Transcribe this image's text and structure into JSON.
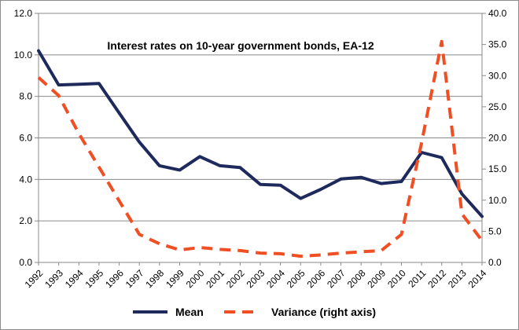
{
  "chart_data": {
    "type": "line",
    "title": "Interest  rates on 10-year government bonds, EA-12",
    "x": [
      "1992",
      "1993",
      "1994",
      "1995",
      "1996",
      "1997",
      "1998",
      "1999",
      "2000",
      "2001",
      "2002",
      "2003",
      "2004",
      "2005",
      "2006",
      "2007",
      "2008",
      "2009",
      "2010",
      "2011",
      "2012",
      "2013",
      "2014"
    ],
    "series": [
      {
        "name": "Mean",
        "axis": "left",
        "color": "#1f2a5c",
        "style": "solid",
        "values": [
          10.2,
          8.55,
          8.58,
          8.62,
          7.2,
          5.8,
          4.66,
          4.45,
          5.1,
          4.66,
          4.57,
          3.76,
          3.72,
          3.08,
          3.52,
          4.02,
          4.1,
          3.8,
          3.9,
          5.3,
          5.05,
          3.3,
          2.22
        ]
      },
      {
        "name": "Variance (right axis)",
        "axis": "right",
        "color": "#f04e23",
        "style": "dashed",
        "values": [
          29.7,
          26.8,
          20.7,
          15.3,
          9.9,
          4.5,
          3.0,
          2.0,
          2.4,
          2.1,
          1.9,
          1.5,
          1.4,
          1.0,
          1.2,
          1.5,
          1.7,
          1.9,
          4.5,
          19.2,
          35.5,
          7.8,
          3.5
        ]
      }
    ],
    "y_left": {
      "ylim": [
        0,
        12
      ],
      "ticks": [
        "0.0",
        "2.0",
        "4.0",
        "6.0",
        "8.0",
        "10.0",
        "12.0"
      ]
    },
    "y_right": {
      "ylim": [
        0,
        40
      ],
      "ticks": [
        "0.0",
        "5.0",
        "10.0",
        "15.0",
        "20.0",
        "25.0",
        "30.0",
        "35.0",
        "40.0"
      ]
    },
    "grid": true,
    "legend_position": "bottom"
  }
}
